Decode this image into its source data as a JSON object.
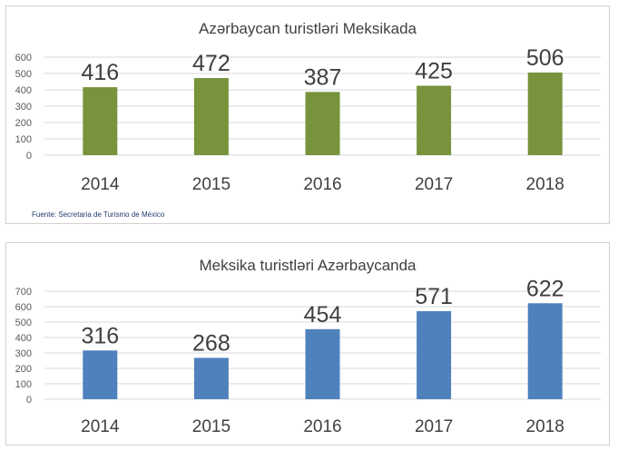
{
  "chart_data": [
    {
      "type": "bar",
      "title": "Azərbaycan turistləri Meksikada",
      "categories": [
        "2014",
        "2015",
        "2016",
        "2017",
        "2018"
      ],
      "values": [
        416,
        472,
        387,
        425,
        506
      ],
      "ylim": [
        0,
        600
      ],
      "yticks": [
        0,
        100,
        200,
        300,
        400,
        500,
        600
      ],
      "grid": true,
      "legend": "none",
      "color": "#77933c",
      "source": "Fuente: Secretaria de Turismo de México"
    },
    {
      "type": "bar",
      "title": "Meksika turistləri Azərbaycanda",
      "categories": [
        "2014",
        "2015",
        "2016",
        "2017",
        "2018"
      ],
      "values": [
        316,
        268,
        454,
        571,
        622
      ],
      "ylim": [
        0,
        700
      ],
      "yticks": [
        0,
        100,
        200,
        300,
        400,
        500,
        600,
        700
      ],
      "grid": true,
      "legend": "none",
      "color": "#4f81bd"
    }
  ]
}
